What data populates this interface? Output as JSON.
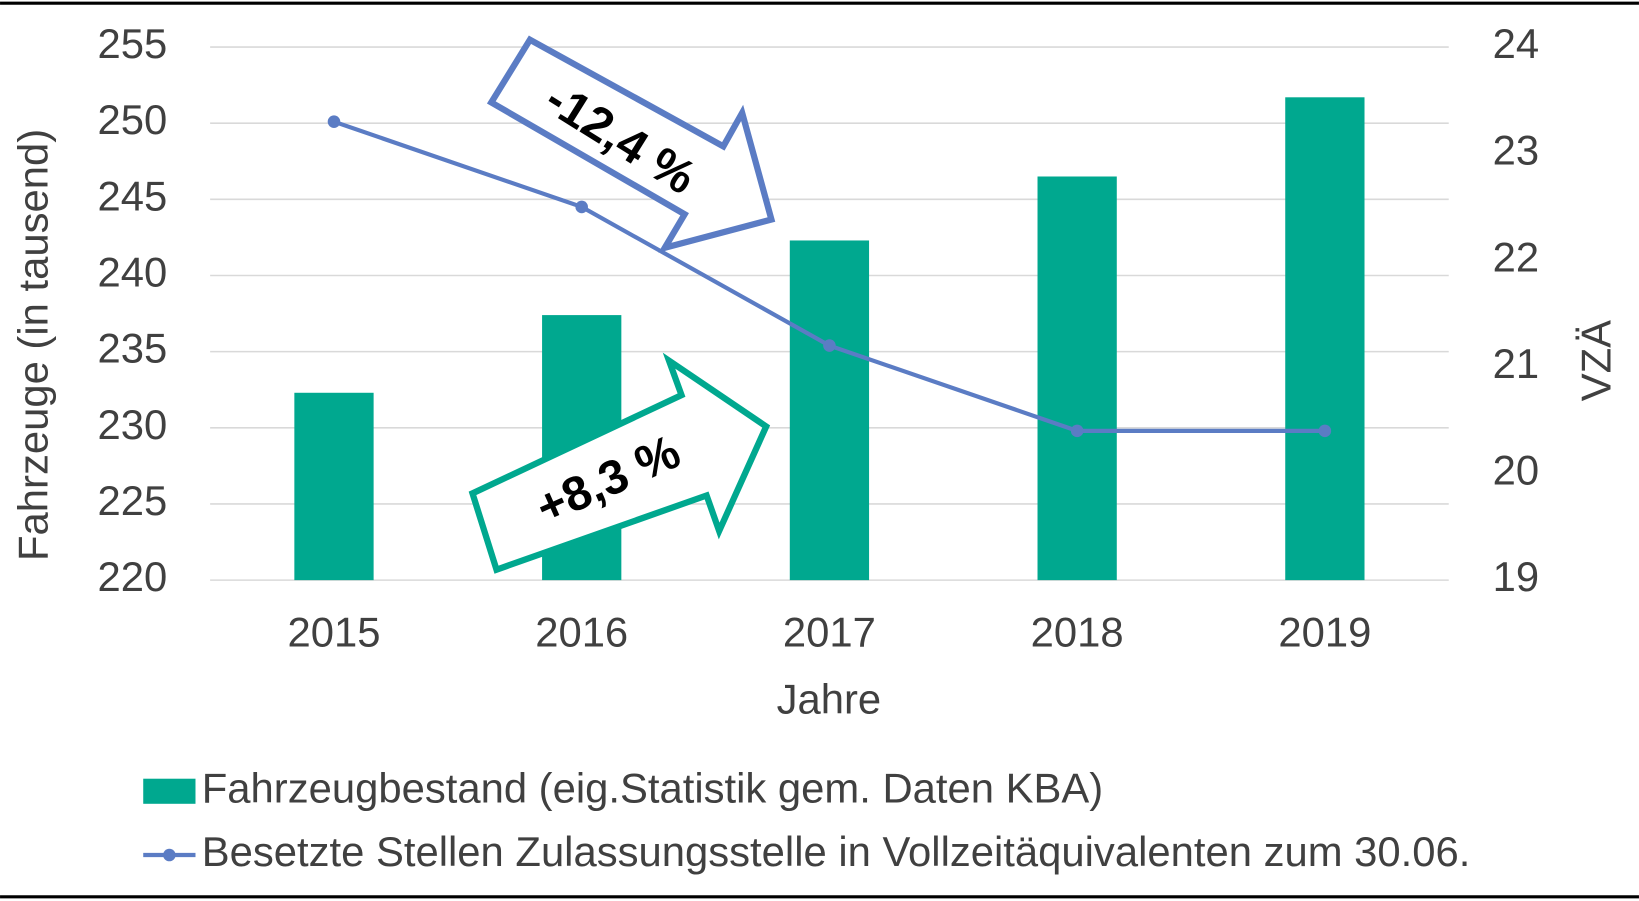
{
  "chart_data": {
    "type": "bar",
    "categories": [
      "2015",
      "2016",
      "2017",
      "2018",
      "2019"
    ],
    "series": [
      {
        "name": "Fahrzeugbestand (eig.Statistik gem. Daten KBA)",
        "color": "#00a88f",
        "type": "bar",
        "values": [
          232.3,
          237.4,
          242.3,
          246.5,
          251.7
        ]
      },
      {
        "name": "Besetzte Stellen Zulassungsstelle in Vollzeitäquivalenten zum 30.06.",
        "color": "#5b7cc4",
        "type": "line",
        "axis": "y2",
        "values": [
          23.3,
          22.5,
          21.2,
          20.4,
          20.4
        ]
      }
    ],
    "ylim": [
      220,
      255
    ],
    "yticks": [
      220,
      225,
      230,
      235,
      240,
      245,
      250,
      255
    ],
    "y2lim": [
      19,
      24
    ],
    "y2ticks": [
      19,
      20,
      21,
      22,
      23,
      24
    ],
    "ylabel": "Fahrzeuge (in tausend)",
    "y2label": "VZÄ",
    "xlabel": "Jahre",
    "annotations": [
      "-12,4 %",
      "+8,3 %"
    ],
    "grid": true,
    "legend": "bottom"
  }
}
